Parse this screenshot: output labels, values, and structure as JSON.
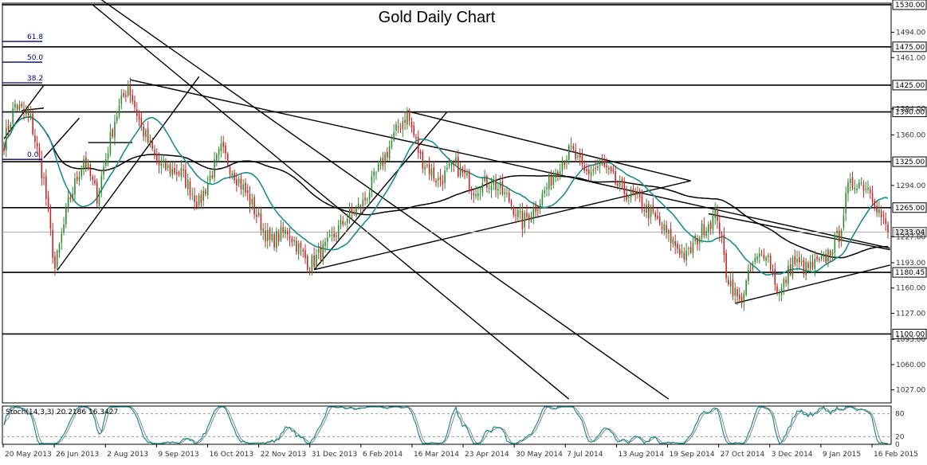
{
  "chart_data": {
    "type": "candlestick",
    "title": "Gold Daily Chart",
    "ylim": [
      1010,
      1532
    ],
    "y_ticks": [
      1027.0,
      1060.0,
      1093.0,
      1127.0,
      1160.0,
      1193.0,
      1227.0,
      1294.0,
      1360.0,
      1394.0,
      1461.0,
      1494.0
    ],
    "horizontal_levels": [
      {
        "value": 1530.0,
        "label": "1530.00"
      },
      {
        "value": 1475.0,
        "label": "1475.00"
      },
      {
        "value": 1425.0,
        "label": "1425.00"
      },
      {
        "value": 1390.0,
        "label": "1390.00"
      },
      {
        "value": 1325.0,
        "label": "1325.00"
      },
      {
        "value": 1265.0,
        "label": "1265.00"
      },
      {
        "value": 1180.45,
        "label": "1180.45"
      },
      {
        "value": 1100.0,
        "label": "1100.00"
      }
    ],
    "current_price": {
      "value": 1233.04,
      "label": "1233.04"
    },
    "x_labels": [
      "20 May 2013",
      "26 Jun 2013",
      "2 Aug 2013",
      "9 Sep 2013",
      "16 Oct 2013",
      "22 Nov 2013",
      "31 Dec 2013",
      "6 Feb 2014",
      "16 Mar 2014",
      "23 Apr 2014",
      "30 May 2014",
      "7 Jul 2014",
      "13 Aug 2014",
      "19 Sep 2014",
      "27 Oct 2014",
      "3 Dec 2014",
      "9 Jan 2015",
      "16 Feb 2015"
    ],
    "fibonacci_levels": [
      {
        "label": "61.8",
        "value": 1482
      },
      {
        "label": "50.0",
        "value": 1455
      },
      {
        "label": "38.2",
        "value": 1428
      },
      {
        "label": "0.0",
        "value": 1328
      }
    ],
    "close_series_anchors": [
      [
        0,
        1350
      ],
      [
        5,
        1400
      ],
      [
        12,
        1380
      ],
      [
        18,
        1300
      ],
      [
        23,
        1185
      ],
      [
        29,
        1270
      ],
      [
        36,
        1330
      ],
      [
        42,
        1280
      ],
      [
        50,
        1380
      ],
      [
        56,
        1425
      ],
      [
        62,
        1370
      ],
      [
        70,
        1320
      ],
      [
        80,
        1310
      ],
      [
        88,
        1270
      ],
      [
        98,
        1340
      ],
      [
        110,
        1280
      ],
      [
        120,
        1220
      ],
      [
        128,
        1235
      ],
      [
        138,
        1190
      ],
      [
        146,
        1215
      ],
      [
        154,
        1250
      ],
      [
        162,
        1270
      ],
      [
        170,
        1320
      ],
      [
        178,
        1370
      ],
      [
        182,
        1388
      ],
      [
        188,
        1330
      ],
      [
        196,
        1300
      ],
      [
        204,
        1320
      ],
      [
        212,
        1290
      ],
      [
        220,
        1300
      ],
      [
        228,
        1275
      ],
      [
        234,
        1245
      ],
      [
        242,
        1275
      ],
      [
        250,
        1320
      ],
      [
        256,
        1340
      ],
      [
        262,
        1310
      ],
      [
        270,
        1320
      ],
      [
        278,
        1290
      ],
      [
        286,
        1275
      ],
      [
        294,
        1250
      ],
      [
        302,
        1220
      ],
      [
        308,
        1200
      ],
      [
        316,
        1240
      ],
      [
        322,
        1255
      ],
      [
        326,
        1180
      ],
      [
        332,
        1140
      ],
      [
        338,
        1190
      ],
      [
        344,
        1210
      ],
      [
        350,
        1150
      ],
      [
        356,
        1195
      ],
      [
        362,
        1185
      ],
      [
        370,
        1195
      ],
      [
        377,
        1230
      ],
      [
        381,
        1290
      ],
      [
        385,
        1300
      ],
      [
        391,
        1290
      ],
      [
        395,
        1260
      ],
      [
        399,
        1232
      ]
    ],
    "stochastic": {
      "label": "Stoch(14,3,3) 20.2186 16.3427",
      "ylim": [
        0,
        100
      ],
      "levels": [
        80,
        20
      ],
      "tick_labels": [
        "80",
        "20",
        "0"
      ]
    }
  }
}
